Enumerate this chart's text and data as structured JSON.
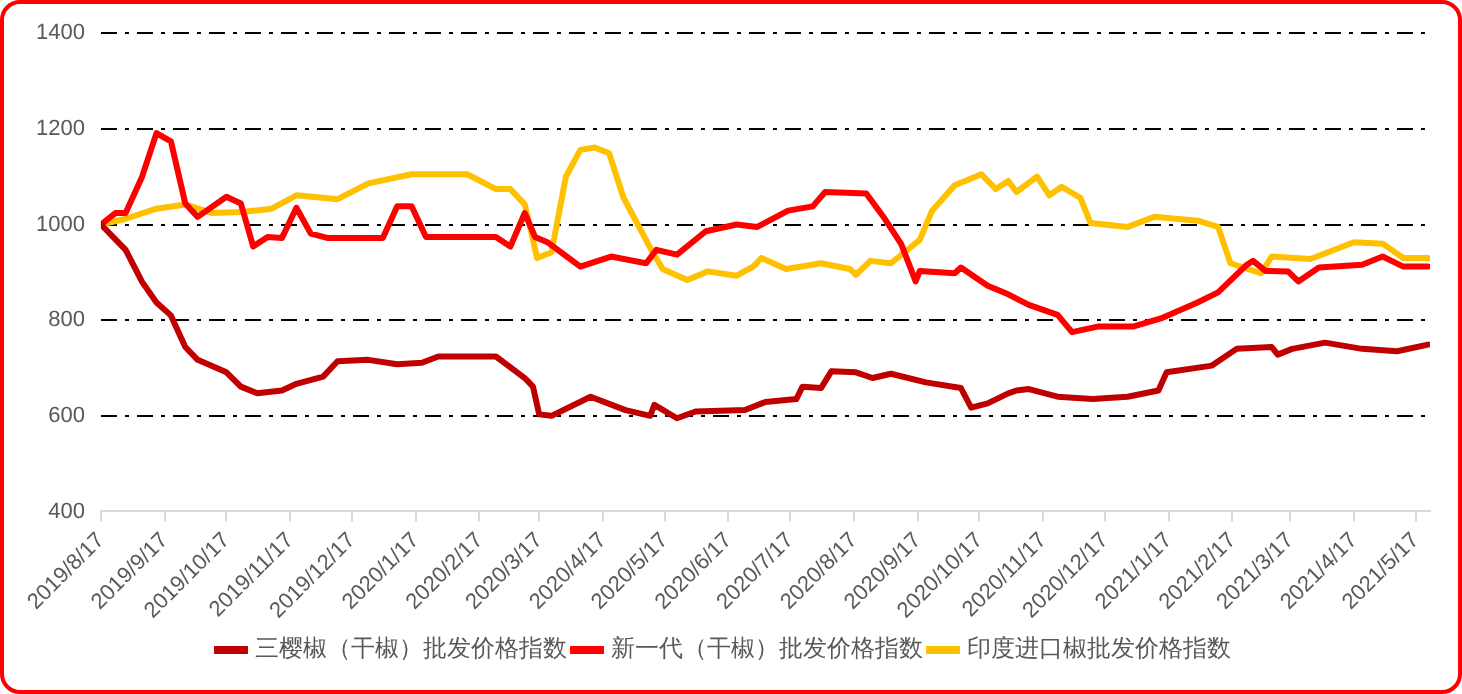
{
  "chart_data": {
    "type": "line",
    "ylim": [
      400,
      1400
    ],
    "yticks": [
      400,
      600,
      800,
      1000,
      1200,
      1400
    ],
    "xlim": [
      "2019-08-17",
      "2021-05-24"
    ],
    "xticks": [
      {
        "value": "2019-08-17",
        "label": "2019/8/17"
      },
      {
        "value": "2019-09-17",
        "label": "2019/9/17"
      },
      {
        "value": "2019-10-17",
        "label": "2019/10/17"
      },
      {
        "value": "2019-11-17",
        "label": "2019/11/17"
      },
      {
        "value": "2019-12-17",
        "label": "2019/12/17"
      },
      {
        "value": "2020-01-17",
        "label": "2020/1/17"
      },
      {
        "value": "2020-02-17",
        "label": "2020/2/17"
      },
      {
        "value": "2020-03-17",
        "label": "2020/3/17"
      },
      {
        "value": "2020-04-17",
        "label": "2020/4/17"
      },
      {
        "value": "2020-05-17",
        "label": "2020/5/17"
      },
      {
        "value": "2020-06-17",
        "label": "2020/6/17"
      },
      {
        "value": "2020-07-17",
        "label": "2020/7/17"
      },
      {
        "value": "2020-08-17",
        "label": "2020/8/17"
      },
      {
        "value": "2020-09-17",
        "label": "2020/9/17"
      },
      {
        "value": "2020-10-17",
        "label": "2020/10/17"
      },
      {
        "value": "2020-11-17",
        "label": "2020/11/17"
      },
      {
        "value": "2020-12-17",
        "label": "2020/12/17"
      },
      {
        "value": "2021-01-17",
        "label": "2021/1/17"
      },
      {
        "value": "2021-02-17",
        "label": "2021/2/17"
      },
      {
        "value": "2021-03-17",
        "label": "2021/3/17"
      },
      {
        "value": "2021-04-17",
        "label": "2021/4/17"
      },
      {
        "value": "2021-05-17",
        "label": "2021/5/17"
      }
    ],
    "grid": "y",
    "legend": "bottom",
    "marker": "none",
    "line_style": "solid",
    "series": [
      {
        "name": "三樱椒（干椒）批发价格指数",
        "color": "#c00000",
        "x": [
          "2019-08-17",
          "2019-08-29",
          "2019-09-06",
          "2019-09-13",
          "2019-09-20",
          "2019-09-27",
          "2019-10-03",
          "2019-10-17",
          "2019-10-24",
          "2019-11-01",
          "2019-11-13",
          "2019-11-20",
          "2019-12-03",
          "2019-12-10",
          "2019-12-25",
          "2020-01-08",
          "2020-01-20",
          "2020-01-28",
          "2020-02-25",
          "2020-03-10",
          "2020-03-14",
          "2020-03-17",
          "2020-03-23",
          "2020-04-11",
          "2020-04-28",
          "2020-05-10",
          "2020-05-12",
          "2020-05-23",
          "2020-06-01",
          "2020-06-25",
          "2020-07-05",
          "2020-07-20",
          "2020-07-23",
          "2020-08-01",
          "2020-08-06",
          "2020-08-18",
          "2020-08-26",
          "2020-09-04",
          "2020-09-21",
          "2020-10-08",
          "2020-10-13",
          "2020-10-21",
          "2020-10-31",
          "2020-11-04",
          "2020-11-10",
          "2020-11-24",
          "2020-12-11",
          "2020-12-28",
          "2021-01-12",
          "2021-01-16",
          "2021-02-07",
          "2021-02-19",
          "2021-03-08",
          "2021-03-11",
          "2021-03-18",
          "2021-04-03",
          "2021-04-21",
          "2021-05-08",
          "2021-05-23"
        ],
        "values": [
          1000,
          947,
          880,
          837,
          810,
          744,
          717,
          691,
          661,
          647,
          653,
          667,
          682,
          714,
          717,
          708,
          711,
          724,
          724,
          679,
          661,
          603,
          600,
          640,
          612,
          600,
          623,
          595,
          609,
          612,
          629,
          635,
          661,
          658,
          693,
          691,
          679,
          688,
          670,
          658,
          617,
          626,
          647,
          653,
          656,
          640,
          635,
          640,
          653,
          691,
          705,
          740,
          744,
          728,
          740,
          753,
          740,
          735,
          749
        ]
      },
      {
        "name": "新一代（干椒）批发价格指数",
        "color": "#ff0000",
        "x": [
          "2019-08-17",
          "2019-08-24",
          "2019-08-29",
          "2019-09-06",
          "2019-09-13",
          "2019-09-20",
          "2019-09-27",
          "2019-10-03",
          "2019-10-17",
          "2019-10-24",
          "2019-10-30",
          "2019-11-06",
          "2019-11-13",
          "2019-11-20",
          "2019-11-27",
          "2019-12-05",
          "2020-01-01",
          "2020-01-08",
          "2020-01-15",
          "2020-01-22",
          "2020-02-25",
          "2020-03-03",
          "2020-03-10",
          "2020-03-15",
          "2020-03-21",
          "2020-04-06",
          "2020-04-21",
          "2020-05-08",
          "2020-05-13",
          "2020-05-23",
          "2020-06-06",
          "2020-06-21",
          "2020-07-01",
          "2020-07-16",
          "2020-07-28",
          "2020-08-03",
          "2020-08-23",
          "2020-09-01",
          "2020-09-09",
          "2020-09-16",
          "2020-09-18",
          "2020-10-05",
          "2020-10-08",
          "2020-10-21",
          "2020-10-31",
          "2020-11-10",
          "2020-11-24",
          "2020-12-01",
          "2020-12-14",
          "2020-12-31",
          "2021-01-14",
          "2021-01-31",
          "2021-02-10",
          "2021-02-24",
          "2021-02-27",
          "2021-03-05",
          "2021-03-16",
          "2021-03-21",
          "2021-03-31",
          "2021-04-21",
          "2021-05-01",
          "2021-05-11",
          "2021-05-23"
        ],
        "values": [
          1000,
          1024,
          1024,
          1100,
          1191,
          1174,
          1044,
          1016,
          1058,
          1044,
          954,
          974,
          972,
          1035,
          981,
          972,
          972,
          1038,
          1038,
          974,
          974,
          954,
          1024,
          974,
          963,
          912,
          933,
          919,
          947,
          937,
          986,
          1000,
          995,
          1029,
          1038,
          1068,
          1065,
          1012,
          959,
          881,
          903,
          898,
          910,
          872,
          854,
          832,
          811,
          775,
          787,
          787,
          805,
          837,
          858,
          916,
          924,
          903,
          902,
          881,
          910,
          916,
          933,
          912,
          912
        ]
      },
      {
        "name": "印度进口椒批发价格指数",
        "color": "#ffc000",
        "x": [
          "2019-08-17",
          "2019-08-29",
          "2019-09-13",
          "2019-09-27",
          "2019-10-10",
          "2019-10-24",
          "2019-11-08",
          "2019-11-20",
          "2019-12-10",
          "2019-12-25",
          "2020-01-15",
          "2020-02-11",
          "2020-02-25",
          "2020-03-03",
          "2020-03-10",
          "2020-03-16",
          "2020-03-23",
          "2020-03-30",
          "2020-04-06",
          "2020-04-13",
          "2020-04-20",
          "2020-04-27",
          "2020-05-10",
          "2020-05-16",
          "2020-05-28",
          "2020-06-07",
          "2020-06-21",
          "2020-06-29",
          "2020-07-03",
          "2020-07-15",
          "2020-08-01",
          "2020-08-15",
          "2020-08-18",
          "2020-08-25",
          "2020-09-04",
          "2020-09-18",
          "2020-09-24",
          "2020-10-05",
          "2020-10-18",
          "2020-10-25",
          "2020-10-31",
          "2020-11-04",
          "2020-11-14",
          "2020-11-20",
          "2020-11-26",
          "2020-12-05",
          "2020-12-10",
          "2020-12-28",
          "2021-01-10",
          "2021-01-31",
          "2021-02-10",
          "2021-02-16",
          "2021-03-03",
          "2021-03-08",
          "2021-03-27",
          "2021-04-17",
          "2021-05-01",
          "2021-05-11",
          "2021-05-23"
        ],
        "values": [
          1000,
          1012,
          1033,
          1042,
          1024,
          1026,
          1033,
          1061,
          1053,
          1086,
          1105,
          1105,
          1074,
          1074,
          1042,
          930,
          942,
          1100,
          1156,
          1161,
          1149,
          1056,
          951,
          907,
          884,
          902,
          893,
          912,
          930,
          907,
          919,
          907,
          895,
          924,
          919,
          968,
          1029,
          1082,
          1105,
          1074,
          1091,
          1068,
          1100,
          1061,
          1079,
          1056,
          1003,
          995,
          1016,
          1008,
          995,
          919,
          898,
          933,
          928,
          963,
          960,
          930,
          930
        ]
      }
    ]
  }
}
